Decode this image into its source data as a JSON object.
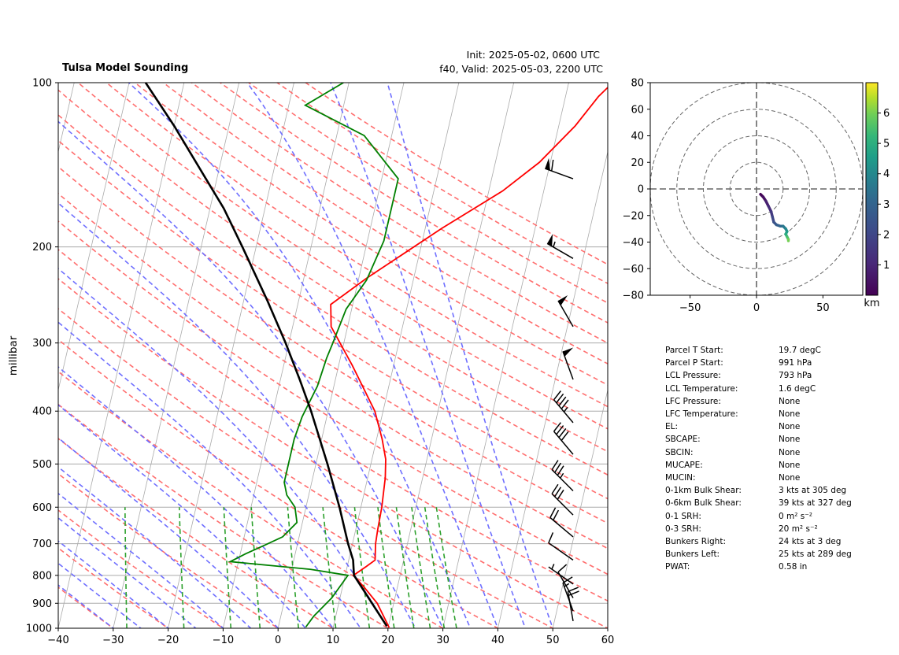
{
  "header": {
    "title": "Tulsa Model Sounding",
    "init": "Init: 2025-05-02, 0600 UTC",
    "valid": "f40, Valid: 2025-05-03, 2200 UTC"
  },
  "colors": {
    "temperature": "#ff0000",
    "dewpoint": "#008000",
    "parcel": "#000000",
    "dry_adiabat": "#ff6f6f",
    "moist_adiabat": "#6f6fff",
    "mixing_ratio": "#2ca02c",
    "isotherm": "#aaaaaa"
  },
  "chart_data": [
    {
      "type": "line",
      "subtype": "skew-t log-p",
      "title": "Tulsa Model Sounding",
      "ylabel": "millibar",
      "xlabel": "",
      "xlim": [
        -40,
        60
      ],
      "ylim": [
        1000,
        100
      ],
      "y_scale": "log",
      "x_ticks": [
        "-40",
        "-30",
        "-20",
        "-10",
        "0",
        "10",
        "20",
        "30",
        "40",
        "50",
        "60"
      ],
      "y_ticks": [
        "100",
        "200",
        "300",
        "400",
        "500",
        "600",
        "700",
        "800",
        "900",
        "1000"
      ],
      "grid": true,
      "series": [
        {
          "role": "temperature",
          "points": [
            [
              20.2,
              997
            ],
            [
              17,
              900
            ],
            [
              14,
              842
            ],
            [
              11.5,
              800
            ],
            [
              13.5,
              770
            ],
            [
              14.8,
              750
            ],
            [
              14.2,
              700
            ],
            [
              14,
              660
            ],
            [
              13.8,
              600
            ],
            [
              13.2,
              530
            ],
            [
              12.5,
              490
            ],
            [
              11,
              450
            ],
            [
              8.5,
              400
            ],
            [
              2.5,
              330
            ],
            [
              -3,
              280
            ],
            [
              -4,
              255
            ],
            [
              1.5,
              228
            ],
            [
              13,
              185
            ],
            [
              22.5,
              158
            ],
            [
              28,
              140
            ],
            [
              33,
              120
            ],
            [
              36,
              106
            ],
            [
              38,
              100
            ]
          ]
        },
        {
          "role": "dewpoint",
          "points": [
            [
              5,
              995
            ],
            [
              6,
              950
            ],
            [
              8.5,
              880
            ],
            [
              10.5,
              800
            ],
            [
              3.5,
              780
            ],
            [
              -11.5,
              755
            ],
            [
              -9,
              730
            ],
            [
              -6,
              705
            ],
            [
              -3,
              680
            ],
            [
              -1,
              640
            ],
            [
              -2,
              600
            ],
            [
              -4,
              570
            ],
            [
              -5,
              540
            ],
            [
              -5,
              510
            ],
            [
              -5,
              480
            ],
            [
              -5,
              450
            ],
            [
              -4.5,
              410
            ],
            [
              -3,
              360
            ],
            [
              -2.5,
              320
            ],
            [
              -2,
              300
            ],
            [
              -1,
              260
            ],
            [
              1.5,
              230
            ],
            [
              3,
              195
            ],
            [
              3,
              175
            ],
            [
              3,
              150
            ],
            [
              -5,
              125
            ],
            [
              -17,
              110
            ],
            [
              -11,
              100
            ]
          ]
        },
        {
          "role": "parcel",
          "points": [
            [
              19.7,
              991
            ],
            [
              11.6,
              800
            ],
            [
              10.8,
              750
            ],
            [
              9.2,
              700
            ],
            [
              6.1,
              600
            ],
            [
              2.1,
              500
            ],
            [
              -3.1,
              400
            ],
            [
              -6.5,
              350
            ],
            [
              -10.6,
              300
            ],
            [
              -15.8,
              250
            ],
            [
              -22.5,
              200
            ],
            [
              -27.5,
              170
            ],
            [
              -32,
              150
            ],
            [
              -40,
              120
            ],
            [
              -47,
              100
            ]
          ]
        }
      ]
    },
    {
      "type": "line",
      "subtype": "hodograph",
      "xlim": [
        -80,
        80
      ],
      "ylim": [
        -80,
        80
      ],
      "x_ticks": [
        "-50",
        "0",
        "50"
      ],
      "y_ticks": [
        "80",
        "60",
        "40",
        "20",
        "0",
        "−20",
        "−40",
        "−60",
        "−80"
      ],
      "rings": [
        20,
        40,
        60,
        80
      ],
      "colorbar": {
        "ticks": [
          "1",
          "2",
          "3",
          "4",
          "5",
          "6"
        ],
        "label": "km",
        "range": [
          0,
          7
        ]
      },
      "points": [
        [
          3,
          -4,
          0.1
        ],
        [
          5,
          -6,
          0.4
        ],
        [
          7,
          -9,
          0.8
        ],
        [
          9,
          -13,
          1.2
        ],
        [
          11,
          -17,
          1.6
        ],
        [
          12,
          -21,
          2.0
        ],
        [
          13,
          -25,
          2.4
        ],
        [
          15,
          -27,
          2.8
        ],
        [
          18,
          -28,
          3.2
        ],
        [
          20,
          -28,
          3.6
        ],
        [
          22,
          -30,
          4.0
        ],
        [
          23,
          -32,
          4.5
        ],
        [
          22,
          -34,
          5.0
        ],
        [
          23,
          -36,
          5.5
        ],
        [
          24,
          -38,
          6.0
        ],
        [
          24,
          -39,
          6.5
        ]
      ]
    }
  ],
  "wind_barbs": [
    {
      "pressure": 150,
      "speed": 60,
      "dir": 290
    },
    {
      "pressure": 210,
      "speed": 55,
      "dir": 300
    },
    {
      "pressure": 280,
      "speed": 50,
      "dir": 330
    },
    {
      "pressure": 350,
      "speed": 50,
      "dir": 340
    },
    {
      "pressure": 420,
      "speed": 45,
      "dir": 320
    },
    {
      "pressure": 480,
      "speed": 40,
      "dir": 320
    },
    {
      "pressure": 560,
      "speed": 35,
      "dir": 315
    },
    {
      "pressure": 620,
      "speed": 30,
      "dir": 315
    },
    {
      "pressure": 680,
      "speed": 20,
      "dir": 310
    },
    {
      "pressure": 750,
      "speed": 10,
      "dir": 305
    },
    {
      "pressure": 830,
      "speed": 5,
      "dir": 305
    },
    {
      "pressure": 880,
      "speed": 10,
      "dir": 330
    },
    {
      "pressure": 930,
      "speed": 15,
      "dir": 340
    },
    {
      "pressure": 970,
      "speed": 20,
      "dir": 350
    }
  ],
  "parameters": [
    {
      "label": "Parcel T Start:",
      "value": "19.7 degC"
    },
    {
      "label": "Parcel P Start:",
      "value": "991 hPa"
    },
    {
      "label": "LCL Pressure:",
      "value": "793 hPa"
    },
    {
      "label": "LCL Temperature:",
      "value": "1.6 degC"
    },
    {
      "label": "LFC Pressure:",
      "value": "None"
    },
    {
      "label": "LFC Temperature:",
      "value": "None"
    },
    {
      "label": "EL:",
      "value": "None"
    },
    {
      "label": "SBCAPE:",
      "value": "None"
    },
    {
      "label": "SBCIN:",
      "value": "None"
    },
    {
      "label": "MUCAPE:",
      "value": "None"
    },
    {
      "label": "MUCIN:",
      "value": "None"
    },
    {
      "label": "0-1km Bulk Shear:",
      "value": "3 kts at 305 deg"
    },
    {
      "label": "0-6km Bulk Shear:",
      "value": "39 kts at 327 deg"
    },
    {
      "label": "0-1 SRH:",
      "value": "0 m² s⁻²"
    },
    {
      "label": "0-3 SRH:",
      "value": "20 m² s⁻²"
    },
    {
      "label": "Bunkers Right:",
      "value": "24 kts at 3 deg"
    },
    {
      "label": "Bunkers Left:",
      "value": "25 kts at 289 deg"
    },
    {
      "label": "PWAT:",
      "value": "0.58 in"
    }
  ]
}
